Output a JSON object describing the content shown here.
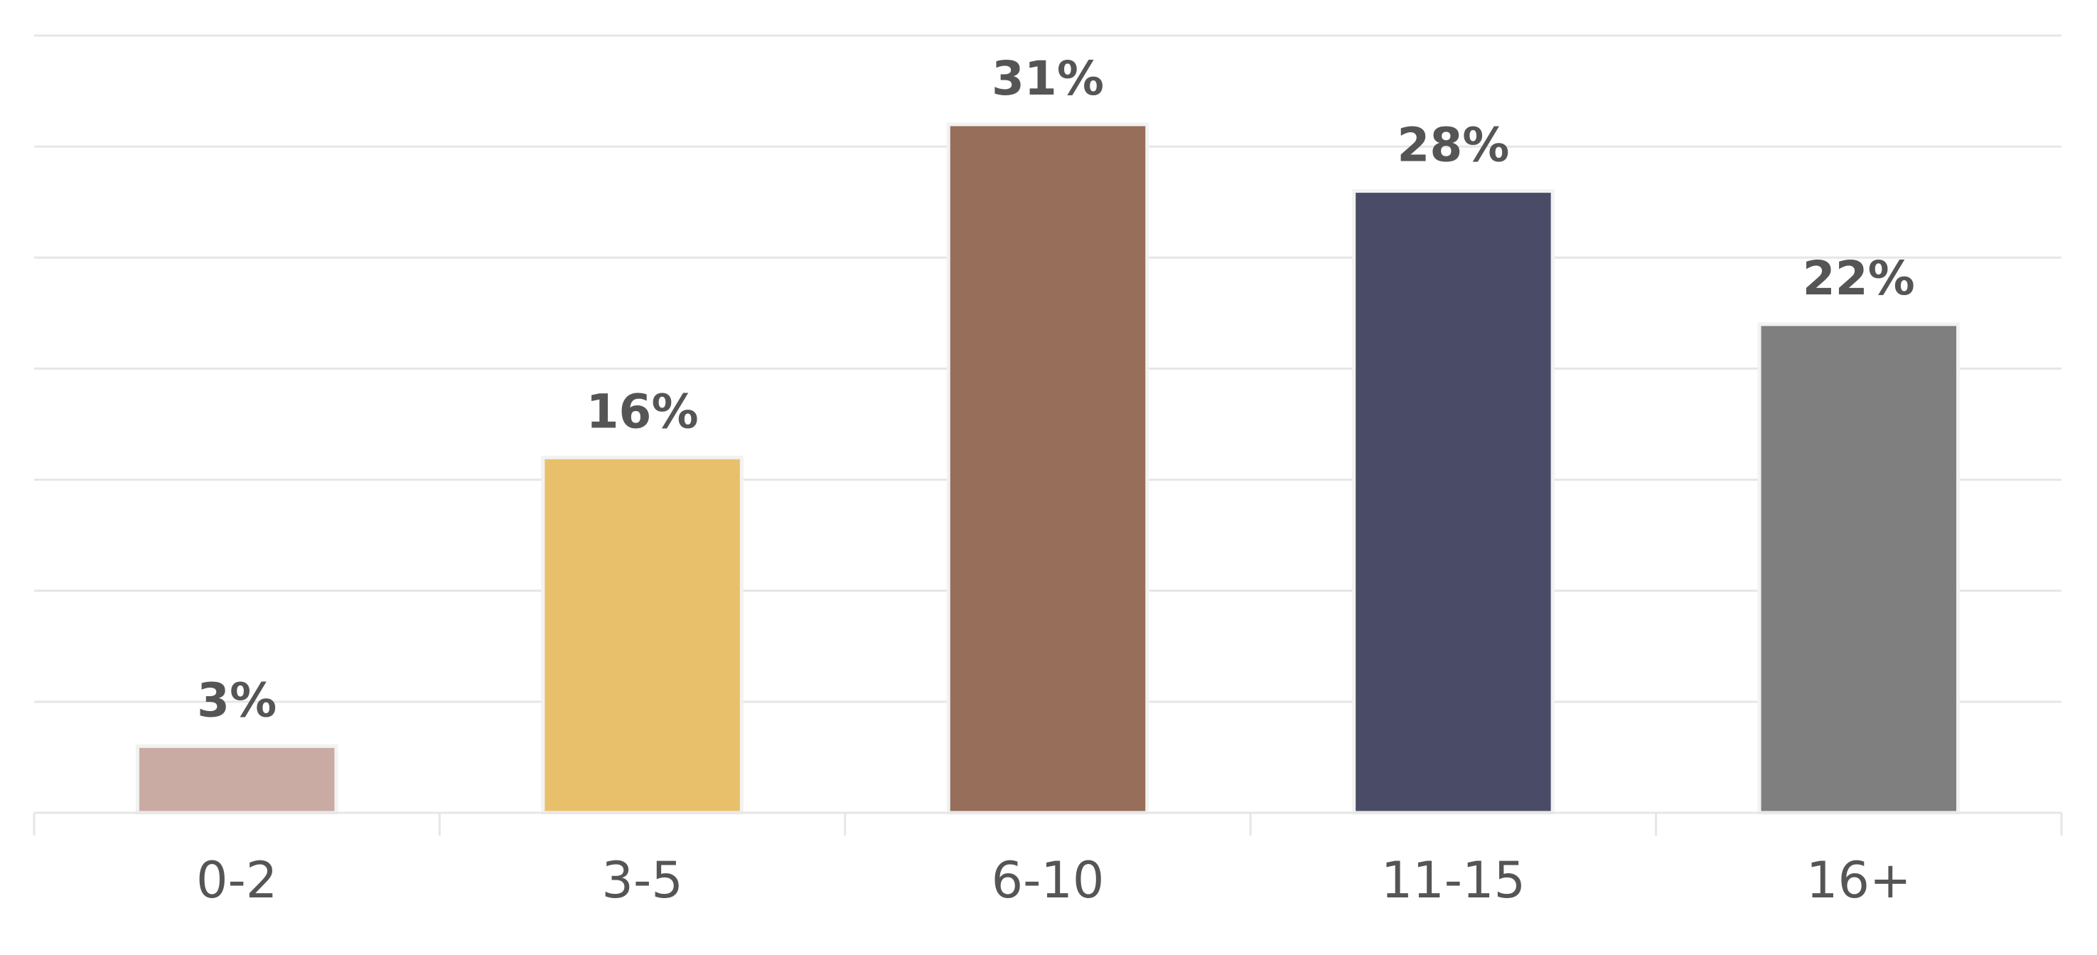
{
  "chart_data": {
    "type": "bar",
    "title": "",
    "xlabel": "",
    "ylabel": "",
    "categories": [
      "0-2",
      "3-5",
      "6-10",
      "11-15",
      "16+"
    ],
    "values": [
      3,
      16,
      31,
      28,
      22
    ],
    "data_labels": [
      "3%",
      "16%",
      "31%",
      "28%",
      "22%"
    ],
    "ylim": [
      0,
      35
    ],
    "grid": true,
    "legend": "none",
    "colors": [
      "#c9aba3",
      "#e8c06b",
      "#976e5a",
      "#4a4c67",
      "#7f7f7f"
    ]
  }
}
